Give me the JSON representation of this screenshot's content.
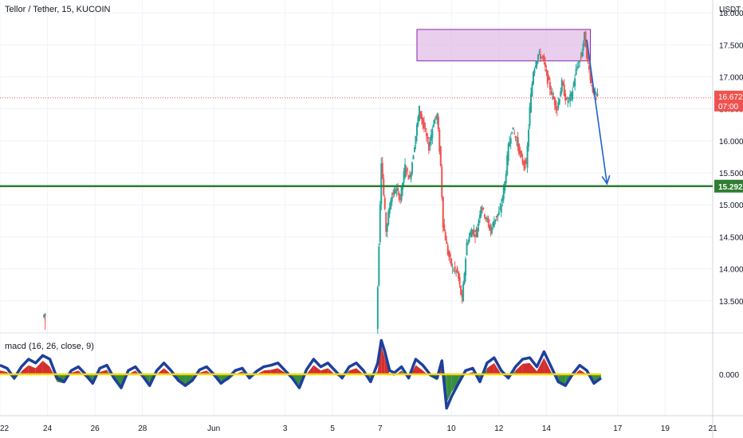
{
  "chart_data": [
    {
      "type": "candlestick",
      "title": "Tellor / Tether, 15, KUCOIN",
      "unit": "USDT",
      "ylim": [
        13.0,
        18.2
      ],
      "yticks": [
        "13.500",
        "14.000",
        "14.500",
        "15.000",
        "15.500",
        "16.000",
        "16.500",
        "17.000",
        "17.500",
        "18.000"
      ],
      "ytick_values": [
        13.5,
        14.0,
        14.5,
        15.0,
        15.5,
        16.0,
        16.5,
        17.0,
        17.5,
        18.0
      ],
      "xlim": [
        22,
        52
      ],
      "xticks": [
        {
          "label": "22",
          "day": 22
        },
        {
          "label": "24",
          "day": 24
        },
        {
          "label": "26",
          "day": 26
        },
        {
          "label": "28",
          "day": 28
        },
        {
          "label": "Jun",
          "day": 31
        },
        {
          "label": "3",
          "day": 34
        },
        {
          "label": "5",
          "day": 36
        },
        {
          "label": "7",
          "day": 38
        },
        {
          "label": "10",
          "day": 41
        },
        {
          "label": "12",
          "day": 43
        },
        {
          "label": "14",
          "day": 45
        },
        {
          "label": "17",
          "day": 48
        },
        {
          "label": "19",
          "day": 50
        },
        {
          "label": "21",
          "day": 52
        }
      ],
      "price_path": [
        [
          23.85,
          13.25
        ],
        [
          23.95,
          13.3
        ],
        [
          37.9,
          13.05
        ],
        [
          38.0,
          14.4
        ],
        [
          38.1,
          15.7
        ],
        [
          38.3,
          14.6
        ],
        [
          38.5,
          15.1
        ],
        [
          38.7,
          15.25
        ],
        [
          38.9,
          15.1
        ],
        [
          39.1,
          15.6
        ],
        [
          39.3,
          15.4
        ],
        [
          39.5,
          15.95
        ],
        [
          39.7,
          16.5
        ],
        [
          39.9,
          16.2
        ],
        [
          40.1,
          15.9
        ],
        [
          40.3,
          16.3
        ],
        [
          40.45,
          16.4
        ],
        [
          40.6,
          15.6
        ],
        [
          40.7,
          14.7
        ],
        [
          40.9,
          14.25
        ],
        [
          41.1,
          14.0
        ],
        [
          41.3,
          13.95
        ],
        [
          41.5,
          13.5
        ],
        [
          41.7,
          14.4
        ],
        [
          41.9,
          14.6
        ],
        [
          42.1,
          14.55
        ],
        [
          42.3,
          15.0
        ],
        [
          42.5,
          14.8
        ],
        [
          42.7,
          14.6
        ],
        [
          42.9,
          14.8
        ],
        [
          43.1,
          14.9
        ],
        [
          43.3,
          15.35
        ],
        [
          43.45,
          15.9
        ],
        [
          43.6,
          16.2
        ],
        [
          43.8,
          16.0
        ],
        [
          44.0,
          15.7
        ],
        [
          44.2,
          15.6
        ],
        [
          44.35,
          16.5
        ],
        [
          44.5,
          17.1
        ],
        [
          44.7,
          17.35
        ],
        [
          44.9,
          17.3
        ],
        [
          45.1,
          16.95
        ],
        [
          45.3,
          16.7
        ],
        [
          45.5,
          16.5
        ],
        [
          45.7,
          16.9
        ],
        [
          45.9,
          16.6
        ],
        [
          46.1,
          16.7
        ],
        [
          46.3,
          17.1
        ],
        [
          46.5,
          17.3
        ],
        [
          46.65,
          17.65
        ],
        [
          46.8,
          17.2
        ],
        [
          47.0,
          16.8
        ],
        [
          47.2,
          16.672
        ]
      ],
      "current_price": {
        "label": "16.672",
        "value": 16.672,
        "countdown": "07:00",
        "color": "#ef5350"
      },
      "support_line": {
        "label": "15.292",
        "value": 15.292,
        "color": "#2e7d32"
      },
      "resistance_zone": {
        "from_day": 39.55,
        "to_day": 46.85,
        "low": 17.25,
        "high": 17.74,
        "color": "#e1bee7"
      },
      "projection_arrow": {
        "from": [
          46.7,
          17.58
        ],
        "to": [
          47.55,
          15.33
        ],
        "color": "#1e62c8"
      },
      "up_color": "#26a69a",
      "down_color": "#ef5350"
    },
    {
      "type": "area",
      "title": "macd (16, 26, close, 9)",
      "ylim": [
        -0.55,
        0.55
      ],
      "yticks": [
        "0.000"
      ],
      "ytick_values": [
        0
      ],
      "zero_line_color": "#f5d90a",
      "macd_line_color": "#1e3f9c",
      "hist_pos_color": "#d32f2f",
      "hist_neg_color": "#388e3c",
      "x": [
        22.0,
        22.3,
        22.6,
        22.9,
        23.2,
        23.5,
        23.8,
        24.1,
        24.4,
        24.7,
        25.0,
        25.3,
        25.6,
        25.9,
        26.2,
        26.5,
        26.8,
        27.1,
        27.4,
        27.7,
        28.0,
        28.3,
        28.6,
        28.9,
        29.2,
        29.5,
        29.8,
        30.1,
        30.4,
        30.7,
        31.0,
        31.3,
        31.6,
        31.9,
        32.2,
        32.5,
        32.8,
        33.1,
        33.4,
        33.7,
        34.0,
        34.3,
        34.6,
        34.9,
        35.2,
        35.5,
        35.8,
        36.1,
        36.4,
        36.7,
        37.0,
        37.3,
        37.6,
        37.9,
        38.05,
        38.2,
        38.4,
        38.6,
        38.9,
        39.2,
        39.5,
        39.8,
        40.1,
        40.4,
        40.6,
        40.8,
        41.0,
        41.3,
        41.6,
        41.9,
        42.2,
        42.5,
        42.8,
        43.1,
        43.4,
        43.7,
        44.0,
        44.3,
        44.6,
        44.9,
        45.2,
        45.5,
        45.8,
        46.1,
        46.4,
        46.7,
        47.0,
        47.3
      ],
      "macd": [
        0.12,
        0.08,
        -0.05,
        0.1,
        0.2,
        0.15,
        0.25,
        0.2,
        -0.05,
        -0.1,
        0.05,
        0.1,
        0.0,
        -0.12,
        0.08,
        0.12,
        -0.05,
        -0.18,
        0.05,
        0.1,
        -0.02,
        -0.15,
        0.05,
        0.15,
        0.05,
        -0.08,
        -0.15,
        -0.08,
        0.06,
        0.1,
        0.0,
        -0.12,
        -0.05,
        0.05,
        0.08,
        -0.05,
        0.04,
        0.1,
        0.12,
        0.15,
        0.05,
        -0.05,
        -0.18,
        0.06,
        0.2,
        0.1,
        0.15,
        0.05,
        -0.05,
        0.1,
        0.15,
        0.05,
        -0.1,
        0.15,
        0.45,
        0.3,
        0.05,
        0.02,
        0.1,
        -0.05,
        0.2,
        0.12,
        0.0,
        -0.05,
        0.18,
        -0.45,
        -0.3,
        -0.12,
        0.05,
        0.08,
        -0.1,
        0.15,
        0.22,
        0.05,
        -0.05,
        0.1,
        0.2,
        0.22,
        0.1,
        0.3,
        0.1,
        -0.1,
        -0.15,
        0.0,
        0.12,
        0.05,
        -0.12,
        -0.05
      ],
      "histogram": [
        0.05,
        0.03,
        -0.08,
        0.04,
        0.12,
        0.08,
        0.18,
        0.1,
        -0.1,
        -0.12,
        0.02,
        0.05,
        -0.04,
        -0.14,
        0.03,
        0.06,
        -0.08,
        -0.16,
        0.0,
        0.05,
        -0.05,
        -0.12,
        0.0,
        0.08,
        0.0,
        -0.1,
        -0.14,
        -0.1,
        0.02,
        0.05,
        -0.03,
        -0.1,
        -0.08,
        0.0,
        0.04,
        -0.06,
        0.0,
        0.05,
        0.06,
        0.08,
        0.02,
        -0.06,
        -0.14,
        0.0,
        0.12,
        0.05,
        0.08,
        0.0,
        -0.06,
        0.05,
        0.08,
        0.0,
        -0.1,
        0.05,
        0.38,
        0.22,
        0.0,
        -0.02,
        0.05,
        -0.06,
        0.12,
        0.05,
        -0.03,
        -0.08,
        0.1,
        -0.38,
        -0.24,
        -0.1,
        0.0,
        0.03,
        -0.1,
        0.08,
        0.15,
        0.0,
        -0.06,
        0.05,
        0.14,
        0.15,
        0.04,
        0.22,
        0.03,
        -0.1,
        -0.14,
        -0.03,
        0.06,
        0.0,
        -0.1,
        -0.06
      ]
    }
  ]
}
